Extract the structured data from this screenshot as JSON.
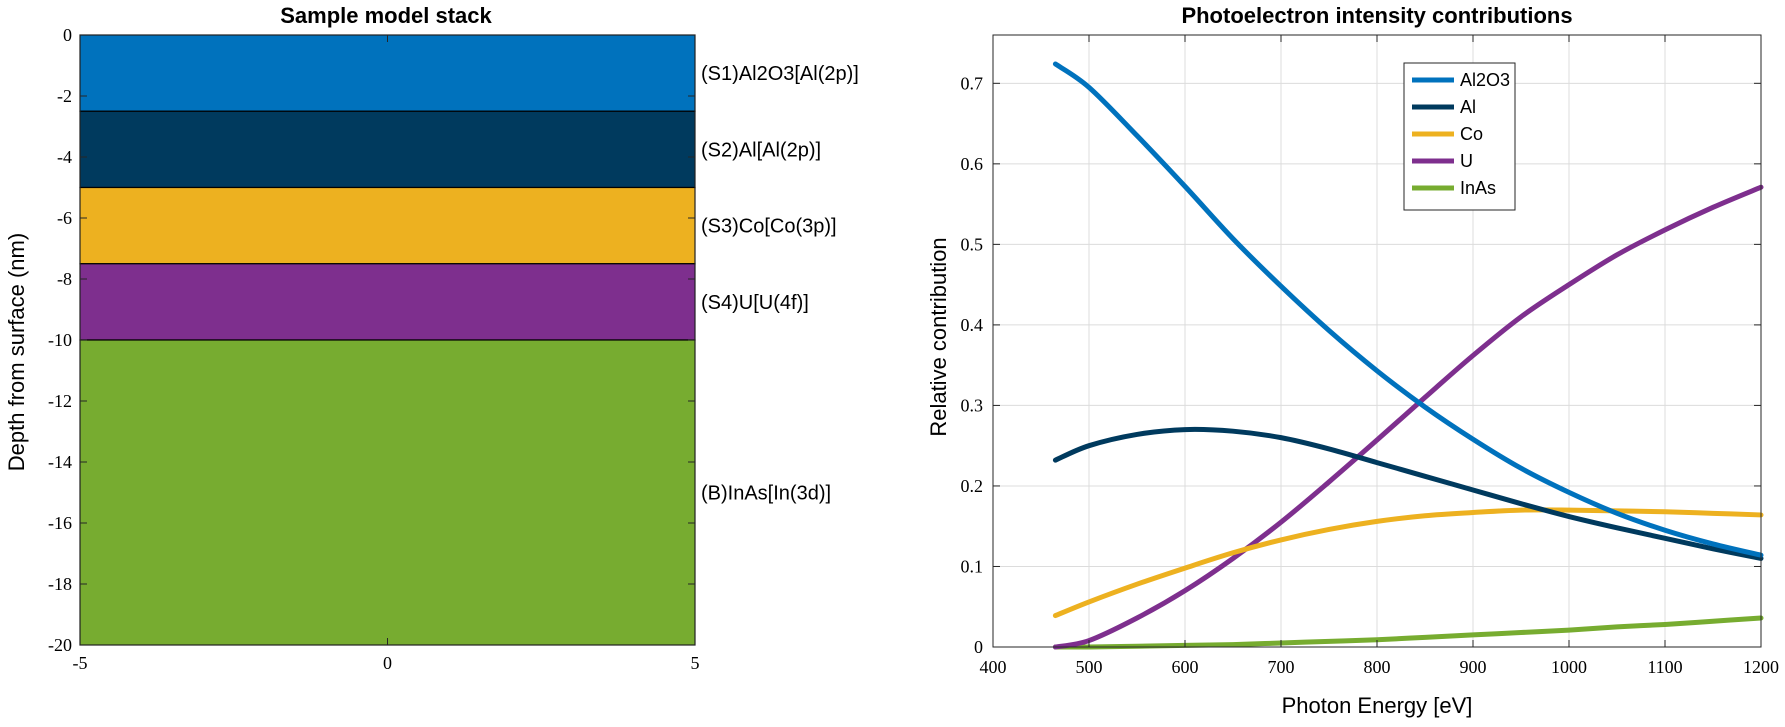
{
  "chart_data": [
    {
      "type": "stacked-layers",
      "title": "Sample model stack",
      "ylabel": "Depth from surface (nm)",
      "xlim": [
        -5,
        5
      ],
      "ylim": [
        -20,
        0
      ],
      "xticks": [
        "-5",
        "0",
        "5"
      ],
      "yticks": [
        "0",
        "-2",
        "-4",
        "-6",
        "-8",
        "-10",
        "-12",
        "-14",
        "-16",
        "-18",
        "-20"
      ],
      "layers": [
        {
          "label": "(S1)Al2O3[Al(2p)]",
          "top": 0,
          "bottom": -2.5,
          "color": "#0072BD"
        },
        {
          "label": "(S2)Al[Al(2p)]",
          "top": -2.5,
          "bottom": -5,
          "color": "#003A5E"
        },
        {
          "label": "(S3)Co[Co(3p)]",
          "top": -5,
          "bottom": -7.5,
          "color": "#EDB120"
        },
        {
          "label": "(S4)U[U(4f)]",
          "top": -7.5,
          "bottom": -10,
          "color": "#7E2F8E"
        },
        {
          "label": "(B)InAs[In(3d)]",
          "top": -10,
          "bottom": -20,
          "color": "#77AC30"
        }
      ]
    },
    {
      "type": "line",
      "title": "Photoelectron intensity contributions",
      "xlabel": "Photon Energy [eV]",
      "ylabel": "Relative contribution",
      "xlim": [
        400,
        1200
      ],
      "ylim": [
        0,
        0.76
      ],
      "xticks": [
        "400",
        "500",
        "600",
        "700",
        "800",
        "900",
        "1000",
        "1100",
        "1200"
      ],
      "yticks": [
        "0",
        "0.1",
        "0.2",
        "0.3",
        "0.4",
        "0.5",
        "0.6",
        "0.7"
      ],
      "grid": true,
      "legend_position": "top-center",
      "x": [
        465,
        500,
        550,
        600,
        650,
        700,
        750,
        800,
        850,
        900,
        950,
        1000,
        1050,
        1100,
        1150,
        1200
      ],
      "series": [
        {
          "name": "Al2O3",
          "color": "#0072BD",
          "values": [
            0.724,
            0.695,
            0.635,
            0.572,
            0.507,
            0.448,
            0.393,
            0.343,
            0.298,
            0.258,
            0.222,
            0.192,
            0.166,
            0.145,
            0.128,
            0.114
          ]
        },
        {
          "name": "Al",
          "color": "#003A5E",
          "values": [
            0.232,
            0.25,
            0.264,
            0.27,
            0.268,
            0.26,
            0.246,
            0.229,
            0.212,
            0.195,
            0.178,
            0.162,
            0.148,
            0.135,
            0.122,
            0.11
          ]
        },
        {
          "name": "Co",
          "color": "#EDB120",
          "values": [
            0.039,
            0.056,
            0.078,
            0.098,
            0.117,
            0.133,
            0.146,
            0.156,
            0.163,
            0.167,
            0.17,
            0.17,
            0.169,
            0.168,
            0.166,
            0.164
          ]
        },
        {
          "name": "U",
          "color": "#7E2F8E",
          "values": [
            0.0,
            0.008,
            0.036,
            0.07,
            0.11,
            0.155,
            0.205,
            0.257,
            0.31,
            0.362,
            0.41,
            0.45,
            0.487,
            0.518,
            0.546,
            0.571
          ]
        },
        {
          "name": "InAs",
          "color": "#77AC30",
          "values": [
            0.0,
            0.0,
            0.001,
            0.002,
            0.003,
            0.005,
            0.007,
            0.009,
            0.012,
            0.015,
            0.018,
            0.021,
            0.025,
            0.028,
            0.032,
            0.036
          ]
        }
      ]
    }
  ]
}
